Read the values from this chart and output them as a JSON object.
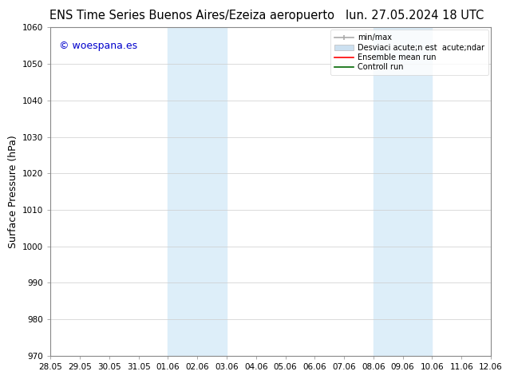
{
  "title_left": "ENS Time Series Buenos Aires/Ezeiza aeropuerto",
  "title_right": "lun. 27.05.2024 18 UTC",
  "ylabel": "Surface Pressure (hPa)",
  "watermark": "© woespana.es",
  "watermark_color": "#0000cc",
  "ylim": [
    970,
    1060
  ],
  "yticks": [
    970,
    980,
    990,
    1000,
    1010,
    1020,
    1030,
    1040,
    1050,
    1060
  ],
  "xtick_labels": [
    "28.05",
    "29.05",
    "30.05",
    "31.05",
    "01.06",
    "02.06",
    "03.06",
    "04.06",
    "05.06",
    "06.06",
    "07.06",
    "08.06",
    "09.06",
    "10.06",
    "11.06",
    "12.06"
  ],
  "bg_color": "#ffffff",
  "plot_bg_color": "#ffffff",
  "shaded_regions": [
    {
      "xstart": 4,
      "xend": 6,
      "color": "#ddeef9"
    },
    {
      "xstart": 11,
      "xend": 13,
      "color": "#ddeef9"
    }
  ],
  "legend_items": [
    {
      "label": "min/max",
      "color": "#aaaaaa",
      "linestyle": "-",
      "linewidth": 1.2
    },
    {
      "label": "Desviaci acute;n est  acute;ndar",
      "color": "#cce0f0",
      "linestyle": "-",
      "linewidth": 8
    },
    {
      "label": "Ensemble mean run",
      "color": "#ff0000",
      "linestyle": "-",
      "linewidth": 1.2
    },
    {
      "label": "Controll run",
      "color": "#006600",
      "linestyle": "-",
      "linewidth": 1.2
    }
  ],
  "grid_color": "#cccccc",
  "tick_fontsize": 7.5,
  "label_fontsize": 9,
  "title_fontsize": 10.5
}
